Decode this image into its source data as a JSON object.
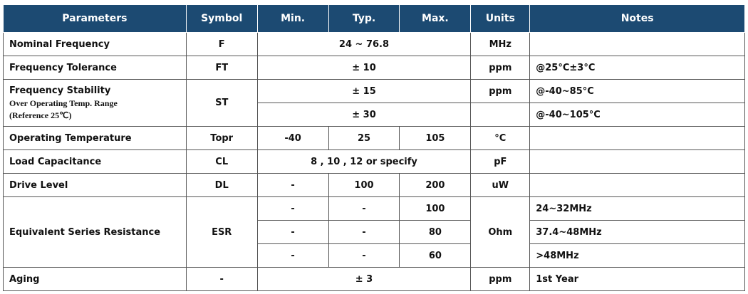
{
  "table": {
    "headers": [
      "Parameters",
      "Symbol",
      "Min.",
      "Typ.",
      "Max.",
      "Units",
      "Notes"
    ],
    "rows": [
      [
        "Nominal Frequency",
        "F",
        "24 ~ 76.8",
        "MHz"
      ],
      [
        "Frequency Tolerance",
        "FT",
        "± 10",
        "ppm",
        "@25°C±3°C"
      ],
      [
        "Frequency Stability",
        "Over Operating Temp. Range",
        "(Reference 25℃)",
        "ST",
        "± 15",
        "ppm",
        "@-40~85°C"
      ],
      [
        "± 30",
        "@-40~105°C"
      ],
      [
        "Operating Temperature",
        "Topr",
        "-40",
        "25",
        "105",
        "°C"
      ],
      [
        "Load Capacitance",
        "CL",
        "8 , 10 , 12 or specify",
        "pF"
      ],
      [
        "Drive Level",
        "DL",
        "-",
        "100",
        "200",
        "uW"
      ],
      [
        "Equivalent Series Resistance",
        "ESR",
        "-",
        "-",
        "100",
        "Ohm",
        "24~32MHz"
      ],
      [
        "-",
        "-",
        "80",
        "37.4~48MHz"
      ],
      [
        "-",
        "-",
        "60",
        ">48MHz"
      ],
      [
        "Aging",
        "-",
        "± 3",
        "ppm",
        "1st Year"
      ]
    ]
  }
}
